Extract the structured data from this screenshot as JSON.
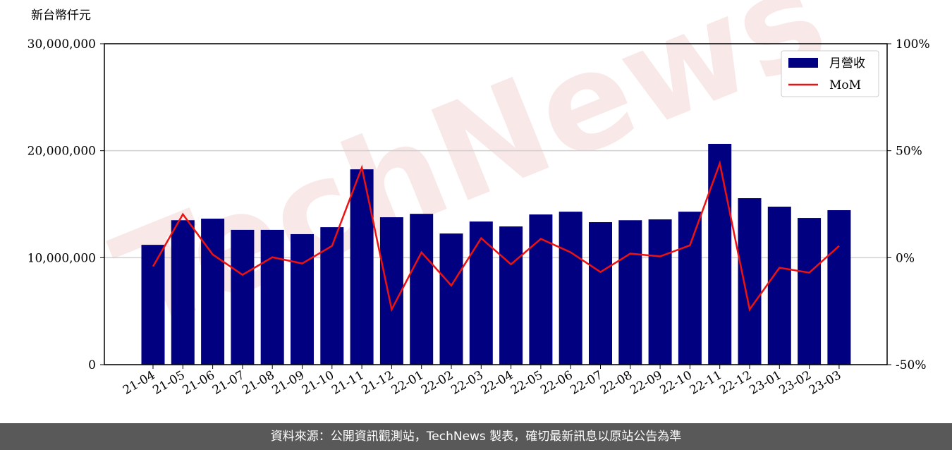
{
  "chart_data": {
    "type": "bar_line",
    "y_label": "新台幣仟元",
    "watermark": "TechNews",
    "categories": [
      "21-04",
      "21-05",
      "21-06",
      "21-07",
      "21-08",
      "21-09",
      "21-10",
      "21-11",
      "21-12",
      "22-01",
      "22-02",
      "22-03",
      "22-04",
      "22-05",
      "22-06",
      "22-07",
      "22-08",
      "22-09",
      "22-10",
      "22-11",
      "22-12",
      "23-01",
      "23-02",
      "23-03"
    ],
    "series": [
      {
        "name": "月營收",
        "type": "bar",
        "color": "#000080",
        "values": [
          11200000,
          13500000,
          13650000,
          12600000,
          12600000,
          12200000,
          12850000,
          18260000,
          13780000,
          14100000,
          12260000,
          13380000,
          12920000,
          14040000,
          14300000,
          13320000,
          13500000,
          13580000,
          14300000,
          20640000,
          15560000,
          14770000,
          13710000,
          14440000
        ]
      },
      {
        "name": "MoM",
        "type": "line",
        "axis": "y2",
        "color": "#ee1111",
        "values": [
          -4.1,
          20.3,
          1.5,
          -8,
          0.2,
          -2.7,
          5.5,
          42.1,
          -24.2,
          2.5,
          -13,
          9.1,
          -3.1,
          8.8,
          2.5,
          -6.7,
          1.9,
          0.6,
          5.8,
          44.1,
          -24.2,
          -4.7,
          -7,
          5.5
        ]
      }
    ],
    "ylim": [
      0,
      30000000
    ],
    "yticks": [
      0,
      {
        "value": 10000000,
        "label": "10,000,000"
      },
      {
        "value": 20000000,
        "label": "20,000,000"
      },
      {
        "value": 30000000,
        "label": "30,000,000"
      }
    ],
    "y2lim": [
      -50,
      100
    ],
    "y2ticks": [
      {
        "value": -50,
        "label": "-50%"
      },
      {
        "value": 0,
        "label": "0%"
      },
      {
        "value": 50,
        "label": "50%"
      },
      {
        "value": 100,
        "label": "100%"
      }
    ],
    "grid": true,
    "legend": "upper right"
  },
  "footer": "資料來源：公開資訊觀測站，TechNews 製表，確切最新訊息以原站公告為準"
}
